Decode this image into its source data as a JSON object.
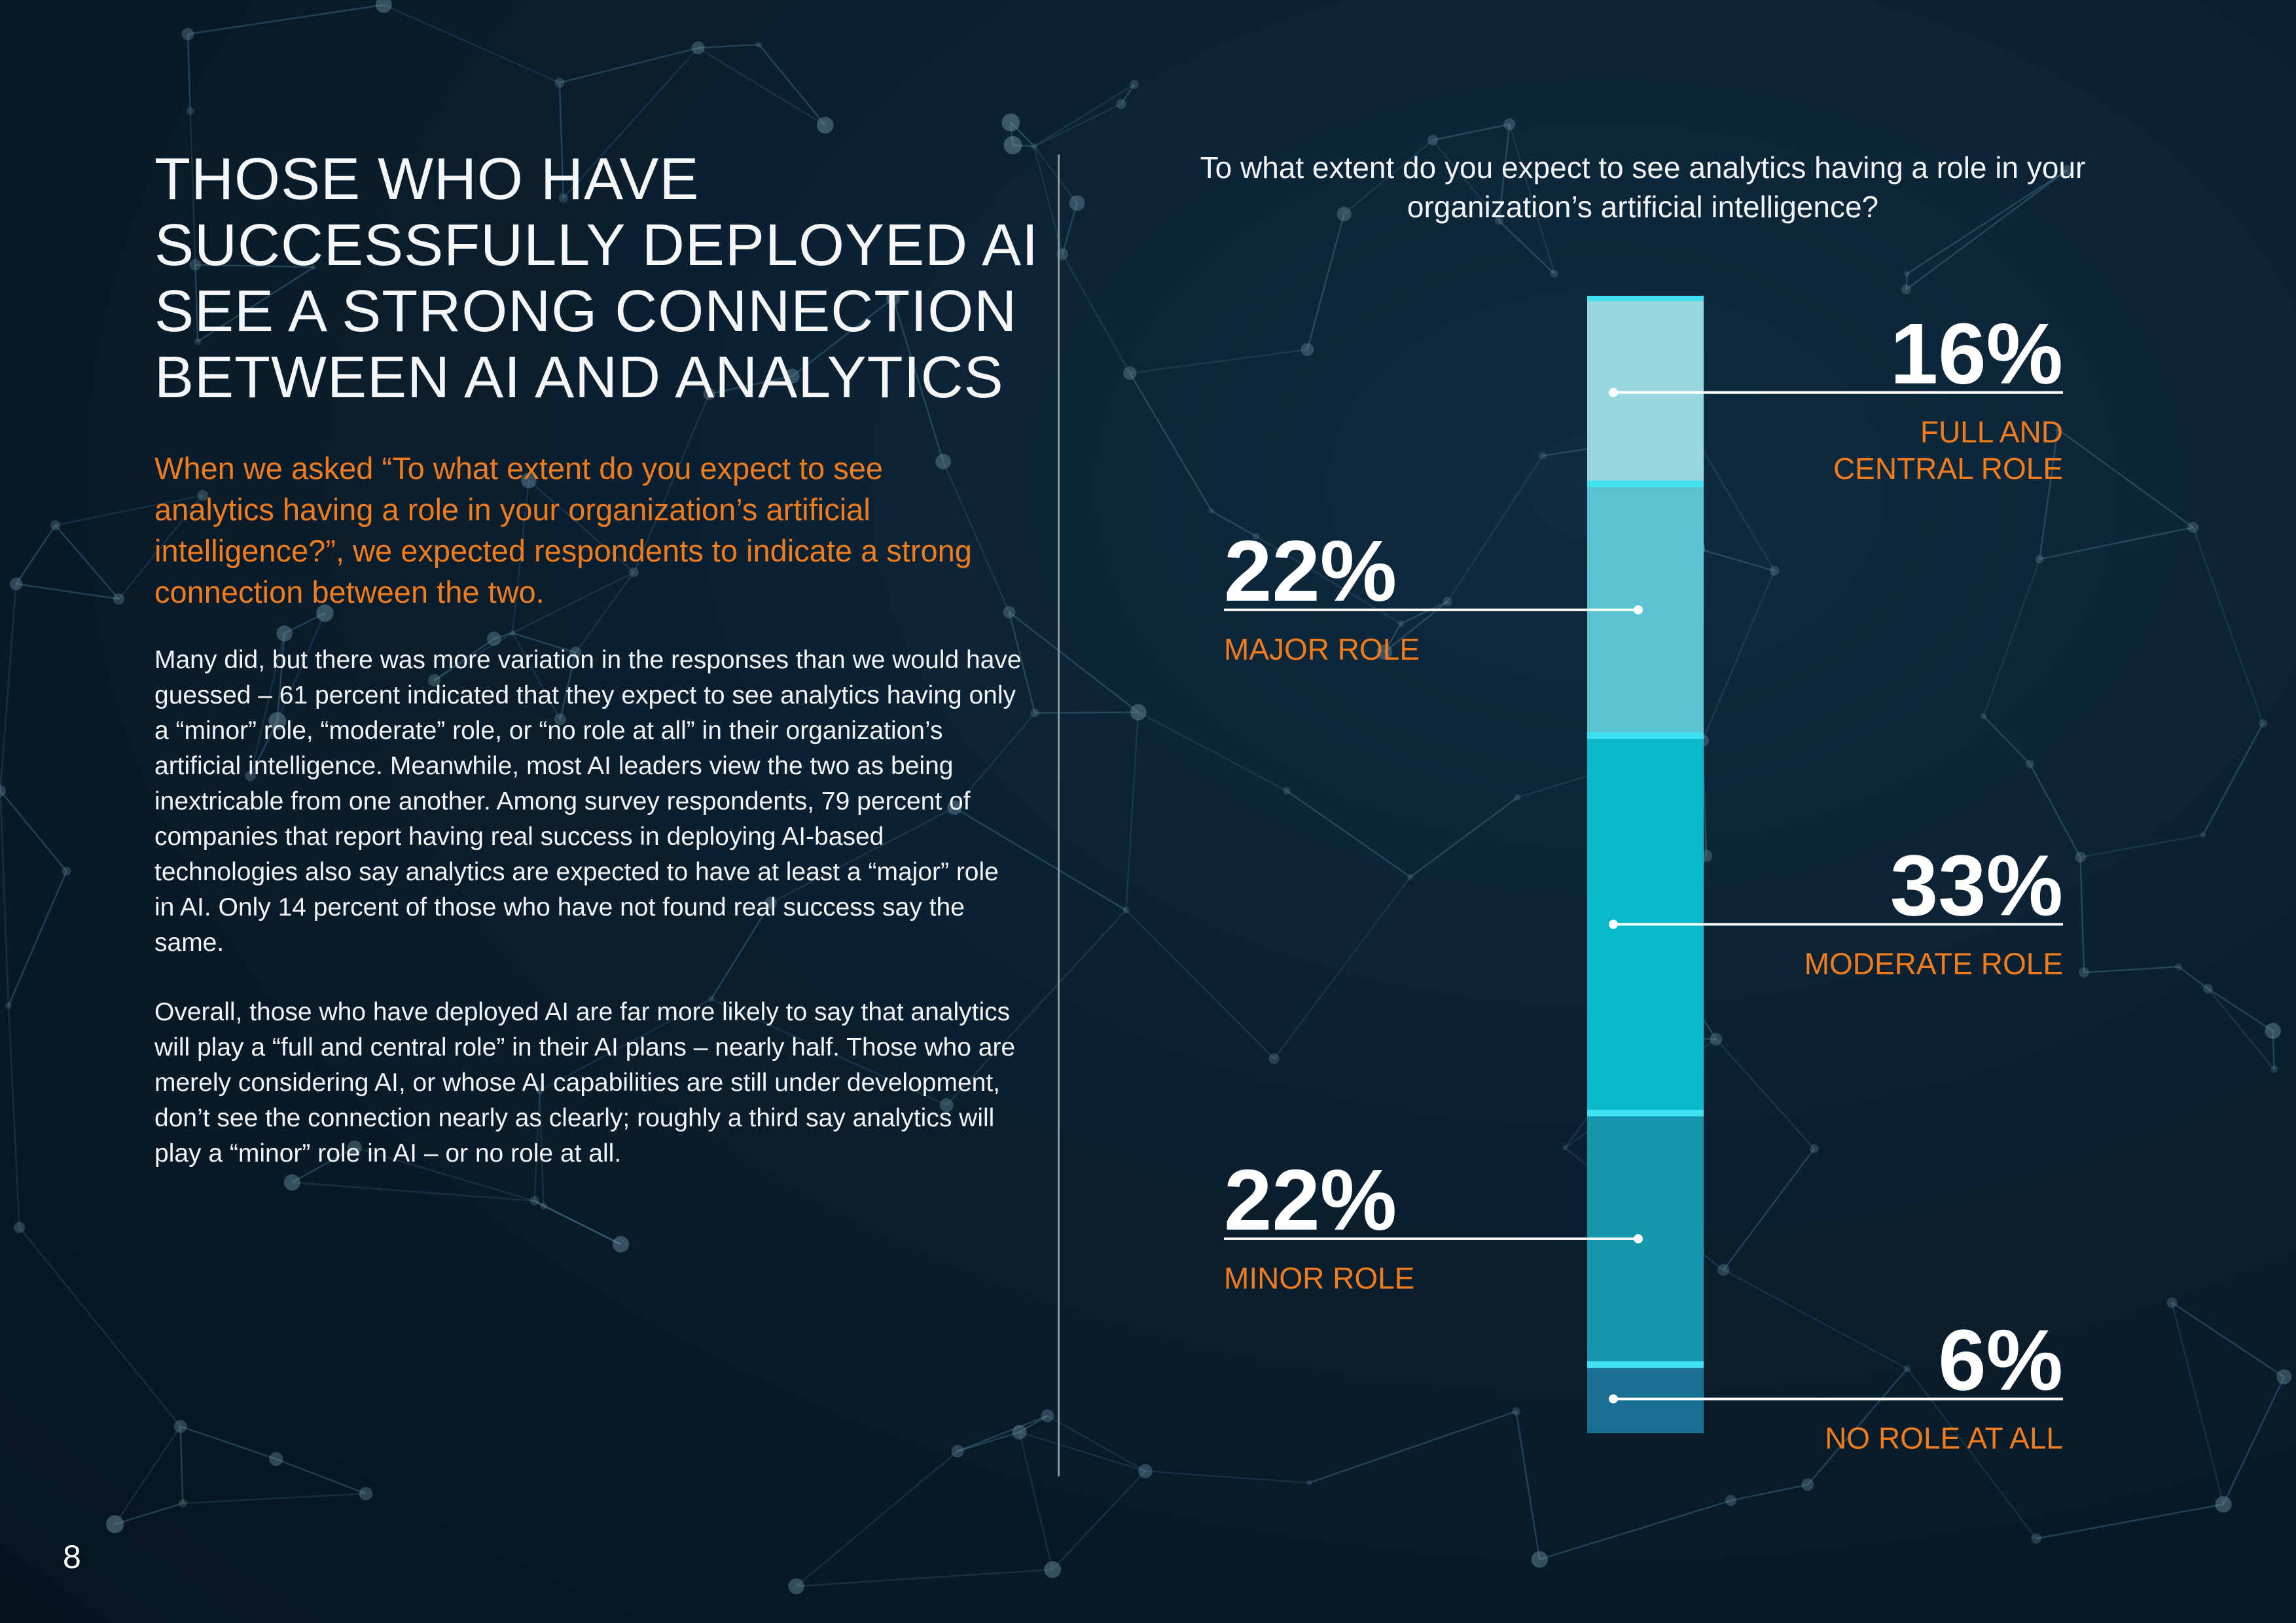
{
  "headline": "THOSE WHO HAVE SUCCESSFULLY DEPLOYED AI SEE A STRONG CONNECTION BETWEEN AI AND ANALYTICS",
  "lead": "When we asked “To what extent do you expect to see analytics having a role in your organization’s artificial intelligence?”, we expected respondents to indicate a strong connection between the two.",
  "paragraphs": [
    "Many did, but there was more variation in the responses than we would have guessed – 61 percent indicated that they expect to see analytics having only a “minor” role, “moderate” role, or “no role at all” in their organization’s artificial intelligence. Meanwhile, most AI leaders view the two as being inextricable from one another. Among survey respondents, 79 percent of companies that report having real success in deploying AI-based technologies also say analytics are expected to have at least a “major” role in AI. Only 14 percent of those who have not found real success say the same.",
    "Overall, those who have deployed AI are far more likely to say that analytics will play a “full and central role” in their AI plans – nearly half. Those who are merely considering AI, or whose AI capabilities are still under development, don’t see the connection nearly as clearly; roughly a third say analytics will play a “minor” role in AI – or no role at all."
  ],
  "page_number": "8",
  "colors": {
    "accent": "#f07c1e",
    "background": "#0a1f2f",
    "divider": "#8b98a3"
  },
  "chart_data": {
    "type": "bar",
    "subtype": "100% stacked single bar",
    "title": "To what extent do you expect to see analytics having a role in your organization’s artificial intelligence?",
    "unit": "%",
    "segments": [
      {
        "name": "FULL AND\nCENTRAL ROLE",
        "value": 16,
        "label": "16%",
        "color": "#97d6df",
        "side": "right"
      },
      {
        "name": "MAJOR ROLE",
        "value": 22,
        "label": "22%",
        "color": "#5bc3d2",
        "side": "left"
      },
      {
        "name": "MODERATE ROLE",
        "value": 33,
        "label": "33%",
        "color": "#09b9c9",
        "side": "right"
      },
      {
        "name": "MINOR ROLE",
        "value": 22,
        "label": "22%",
        "color": "#1795ad",
        "side": "left"
      },
      {
        "name": "NO ROLE AT ALL",
        "value": 6,
        "label": "6%",
        "color": "#186f92",
        "side": "right"
      }
    ],
    "separator_color": "#3ee0f2"
  }
}
